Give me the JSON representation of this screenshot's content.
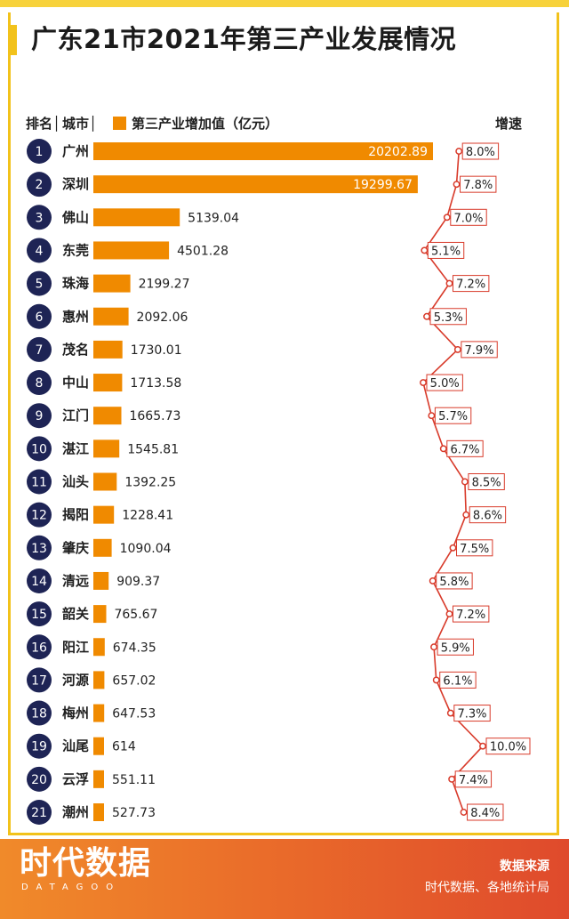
{
  "title": "广东21市2021年第三产业发展情况",
  "headers": {
    "rank": "排名",
    "city": "城市",
    "value": "第三产业增加值（亿元）",
    "growth": "增速"
  },
  "colors": {
    "bar": "#f08a00",
    "rank_circle": "#1e2455",
    "line": "#d83a2a"
  },
  "chart_data": {
    "type": "bar",
    "orientation": "horizontal",
    "categories": [
      "广州",
      "深圳",
      "佛山",
      "东莞",
      "珠海",
      "惠州",
      "茂名",
      "中山",
      "江门",
      "湛江",
      "汕头",
      "揭阳",
      "肇庆",
      "清远",
      "韶关",
      "阳江",
      "河源",
      "梅州",
      "汕尾",
      "云浮",
      "潮州"
    ],
    "ranks": [
      "1",
      "2",
      "3",
      "4",
      "5",
      "6",
      "7",
      "8",
      "9",
      "10",
      "11",
      "12",
      "13",
      "14",
      "15",
      "16",
      "17",
      "18",
      "19",
      "20",
      "21"
    ],
    "series": [
      {
        "name": "第三产业增加值（亿元）",
        "values": [
          20202.89,
          19299.67,
          5139.04,
          4501.28,
          2199.27,
          2092.06,
          1730.01,
          1713.58,
          1665.73,
          1545.81,
          1392.25,
          1228.41,
          1090.04,
          909.37,
          765.67,
          674.35,
          657.02,
          647.53,
          614,
          551.11,
          527.73
        ]
      },
      {
        "name": "增速",
        "values": [
          8.0,
          7.8,
          7.0,
          5.1,
          7.2,
          5.3,
          7.9,
          5.0,
          5.7,
          6.7,
          8.5,
          8.6,
          7.5,
          5.8,
          7.2,
          5.9,
          6.1,
          7.3,
          10.0,
          7.4,
          8.4
        ]
      }
    ],
    "value_labels": [
      "20202.89",
      "19299.67",
      "5139.04",
      "4501.28",
      "2199.27",
      "2092.06",
      "1730.01",
      "1713.58",
      "1665.73",
      "1545.81",
      "1392.25",
      "1228.41",
      "1090.04",
      "909.37",
      "765.67",
      "674.35",
      "657.02",
      "647.53",
      "614",
      "551.11",
      "527.73"
    ],
    "growth_labels": [
      "8.0%",
      "7.8%",
      "7.0%",
      "5.1%",
      "7.2%",
      "5.3%",
      "7.9%",
      "5.0%",
      "5.7%",
      "6.7%",
      "8.5%",
      "8.6%",
      "7.5%",
      "5.8%",
      "7.2%",
      "5.9%",
      "6.1%",
      "7.3%",
      "10.0%",
      "7.4%",
      "8.4%"
    ]
  },
  "footer": {
    "logo_text": "时代数据",
    "logo_sub": "DATAGOO",
    "source_title": "数据来源",
    "source_text": "时代数据、各地统计局"
  }
}
